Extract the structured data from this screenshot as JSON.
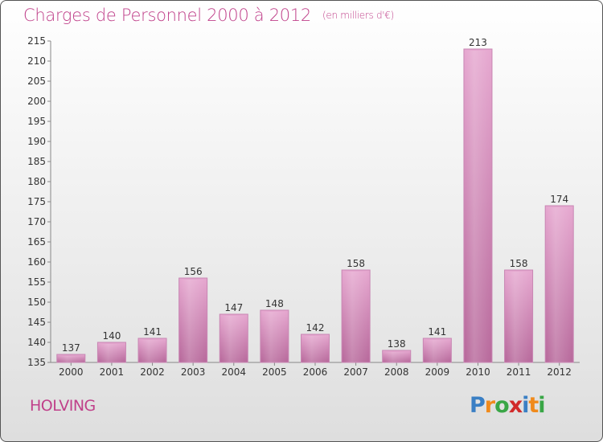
{
  "header": {
    "title": "Charges de Personnel 2000 à 2012",
    "subtitle": "(en milliers d'€)"
  },
  "commune": "HOLVING",
  "brand": {
    "letters": [
      "P",
      "r",
      "o",
      "x",
      "i",
      "t",
      "i"
    ],
    "colors": [
      "#3a7fc4",
      "#f08a1c",
      "#39a646",
      "#d12a2a",
      "#3a7fc4",
      "#f08a1c",
      "#39a646"
    ]
  },
  "chart_data": {
    "type": "bar",
    "title": "Charges de Personnel 2000 à 2012",
    "subtitle": "(en milliers d'€)",
    "categories": [
      "2000",
      "2001",
      "2002",
      "2003",
      "2004",
      "2005",
      "2006",
      "2007",
      "2008",
      "2009",
      "2010",
      "2011",
      "2012"
    ],
    "values": [
      137,
      140,
      141,
      156,
      147,
      148,
      142,
      158,
      138,
      141,
      213,
      158,
      174
    ],
    "ylim": [
      135,
      215
    ],
    "yticks": [
      135,
      140,
      145,
      150,
      155,
      160,
      165,
      170,
      175,
      180,
      185,
      190,
      195,
      200,
      205,
      210,
      215
    ],
    "grid": false,
    "bar_color": "#d98fbf",
    "data_labels": true
  }
}
